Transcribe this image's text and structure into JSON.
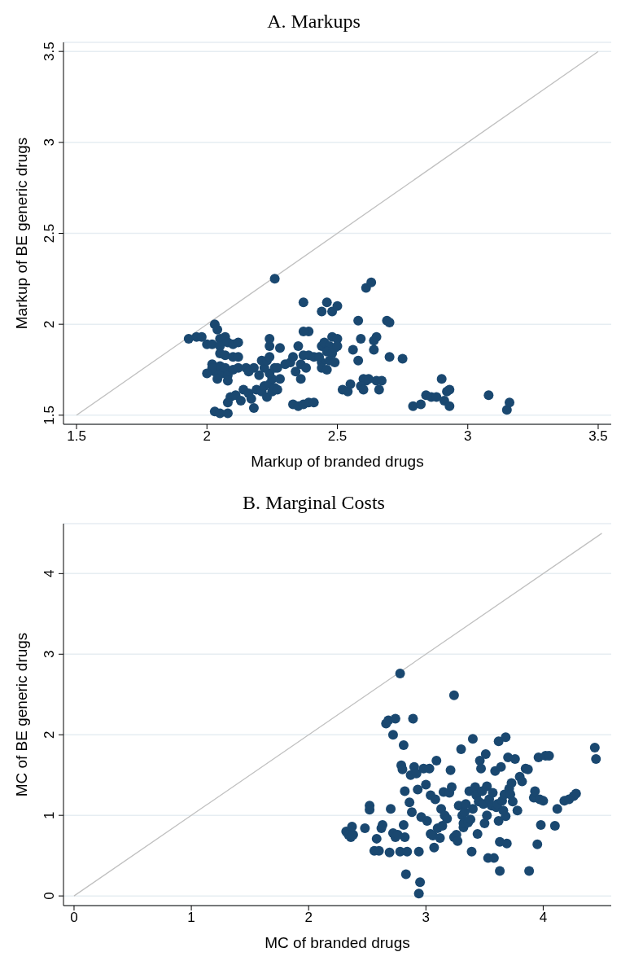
{
  "chart_data": [
    {
      "type": "scatter",
      "title": "A. Markups",
      "xlabel": "Markup of branded drugs",
      "ylabel": "Markup of BE generic drugs",
      "xlim": [
        1.45,
        3.55
      ],
      "ylim": [
        1.45,
        3.55
      ],
      "xticks": [
        1.5,
        2,
        2.5,
        3,
        3.5
      ],
      "yticks": [
        1.5,
        2,
        2.5,
        3,
        3.5
      ],
      "grid": "y",
      "series": [
        {
          "marker": "circle",
          "color": "#1a4870",
          "x": [
            1.93,
            1.96,
            1.98,
            2.0,
            2.02,
            2.03,
            2.04,
            2.05,
            2.05,
            2.07,
            2.08,
            2.1,
            2.12,
            2.05,
            2.07,
            2.1,
            2.12,
            2.02,
            2.03,
            2.05,
            2.06,
            2.07,
            2.08,
            2.1,
            2.12,
            2.15,
            2.16,
            2.04,
            2.08,
            2.02,
            2.0,
            2.18,
            2.03,
            2.05,
            2.08,
            2.08,
            2.09,
            2.11,
            2.13,
            2.14,
            2.16,
            2.17,
            2.18,
            2.19,
            2.21,
            2.22,
            2.23,
            2.24,
            2.25,
            2.26,
            2.27,
            2.25,
            2.24,
            2.26,
            2.28,
            2.2,
            2.22,
            2.21,
            2.23,
            2.24,
            2.24,
            2.24,
            2.28,
            2.27,
            2.3,
            2.32,
            2.33,
            2.35,
            2.37,
            2.39,
            2.41,
            2.26,
            2.37,
            2.39,
            2.37,
            2.35,
            2.37,
            2.39,
            2.41,
            2.36,
            2.38,
            2.33,
            2.34,
            2.36,
            2.44,
            2.44,
            2.46,
            2.43,
            2.44,
            2.45,
            2.47,
            2.46,
            2.48,
            2.49,
            2.48,
            2.47,
            2.49,
            2.44,
            2.46,
            2.48,
            2.5,
            2.5,
            2.5,
            2.52,
            2.54,
            2.55,
            2.56,
            2.58,
            2.59,
            2.58,
            2.6,
            2.61,
            2.59,
            2.6,
            2.62,
            2.61,
            2.63,
            2.64,
            2.65,
            2.64,
            2.65,
            2.67,
            2.66,
            2.69,
            2.7,
            2.7,
            2.75,
            2.79,
            2.82,
            2.84,
            2.86,
            2.88,
            2.9,
            2.91,
            2.92,
            2.93,
            2.93,
            3.08,
            3.15,
            3.16
          ],
          "values": [
            1.92,
            1.93,
            1.93,
            1.89,
            1.89,
            2.0,
            1.97,
            1.92,
            1.88,
            1.93,
            1.9,
            1.89,
            1.9,
            1.84,
            1.83,
            1.82,
            1.82,
            1.78,
            1.74,
            1.77,
            1.73,
            1.76,
            1.72,
            1.75,
            1.76,
            1.76,
            1.74,
            1.7,
            1.69,
            1.76,
            1.73,
            1.76,
            1.52,
            1.51,
            1.51,
            1.57,
            1.6,
            1.61,
            1.58,
            1.64,
            1.62,
            1.59,
            1.54,
            1.64,
            1.63,
            1.66,
            1.6,
            1.67,
            1.63,
            1.65,
            1.64,
            1.7,
            1.73,
            1.76,
            1.7,
            1.72,
            1.76,
            1.8,
            1.8,
            1.82,
            1.88,
            1.92,
            1.87,
            1.76,
            1.78,
            1.79,
            1.56,
            1.55,
            1.56,
            1.57,
            1.57,
            2.25,
            2.12,
            1.96,
            1.96,
            1.88,
            1.83,
            1.83,
            1.82,
            1.78,
            1.76,
            1.82,
            1.74,
            1.7,
            1.79,
            1.76,
            1.75,
            1.82,
            1.88,
            1.9,
            1.88,
            1.85,
            1.84,
            1.87,
            1.93,
            1.8,
            1.79,
            2.07,
            2.12,
            2.07,
            2.1,
            1.92,
            1.88,
            1.64,
            1.63,
            1.67,
            1.86,
            1.8,
            1.92,
            2.02,
            1.7,
            1.69,
            1.66,
            1.64,
            1.7,
            2.2,
            2.23,
            1.91,
            1.93,
            1.86,
            1.69,
            1.69,
            1.64,
            2.02,
            2.01,
            1.82,
            1.81,
            1.55,
            1.56,
            1.61,
            1.6,
            1.6,
            1.7,
            1.58,
            1.63,
            1.64,
            1.55,
            1.61,
            1.53,
            1.57
          ]
        },
        {
          "type": "line",
          "color": "#c0c0c0",
          "x": [
            1.5,
            3.5
          ],
          "values": [
            1.5,
            3.5
          ]
        }
      ]
    },
    {
      "type": "scatter",
      "title": "B. Marginal Costs",
      "xlabel": "MC of branded drugs",
      "ylabel": "MC of BE generic drugs",
      "xlim": [
        -0.09,
        4.58
      ],
      "ylim": [
        -0.12,
        4.62
      ],
      "xticks": [
        0,
        1,
        2,
        3,
        4
      ],
      "yticks": [
        0,
        1,
        2,
        3,
        4
      ],
      "grid": "y",
      "series": [
        {
          "marker": "circle",
          "color": "#1a4870",
          "x": [
            2.32,
            2.34,
            2.36,
            2.38,
            2.37,
            2.48,
            2.52,
            2.52,
            2.56,
            2.58,
            2.6,
            2.62,
            2.63,
            2.66,
            2.68,
            2.7,
            2.69,
            2.72,
            2.72,
            2.74,
            2.74,
            2.76,
            2.78,
            2.78,
            2.79,
            2.8,
            2.81,
            2.81,
            2.82,
            2.82,
            2.83,
            2.84,
            2.86,
            2.87,
            2.88,
            2.89,
            2.9,
            2.92,
            2.93,
            2.94,
            2.95,
            2.94,
            2.96,
            2.98,
            3.0,
            3.01,
            3.03,
            3.04,
            3.04,
            3.06,
            3.07,
            3.08,
            3.09,
            3.1,
            3.12,
            3.13,
            3.14,
            3.15,
            3.16,
            3.18,
            3.2,
            3.21,
            3.22,
            3.24,
            3.24,
            3.26,
            3.27,
            3.28,
            3.3,
            3.31,
            3.32,
            3.32,
            3.33,
            3.34,
            3.36,
            3.37,
            3.38,
            3.39,
            3.4,
            3.4,
            3.42,
            3.43,
            3.44,
            3.45,
            3.46,
            3.47,
            3.48,
            3.49,
            3.5,
            3.51,
            3.52,
            3.52,
            3.53,
            3.54,
            3.56,
            3.57,
            3.58,
            3.59,
            3.6,
            3.61,
            3.62,
            3.62,
            3.63,
            3.63,
            3.64,
            3.65,
            3.66,
            3.67,
            3.68,
            3.68,
            3.69,
            3.7,
            3.71,
            3.72,
            3.73,
            3.74,
            3.76,
            3.78,
            3.8,
            3.82,
            3.85,
            3.87,
            3.88,
            3.92,
            3.93,
            3.95,
            3.96,
            3.97,
            3.98,
            4.0,
            4.02,
            4.05,
            4.1,
            4.12,
            4.18,
            4.22,
            4.26,
            4.28,
            4.44,
            4.45
          ],
          "values": [
            0.8,
            0.76,
            0.73,
            0.76,
            0.86,
            0.84,
            1.12,
            1.07,
            0.56,
            0.71,
            0.56,
            0.84,
            0.88,
            2.14,
            2.18,
            1.08,
            0.54,
            0.78,
            2.0,
            2.2,
            0.73,
            0.76,
            2.76,
            0.55,
            1.62,
            1.57,
            1.87,
            0.88,
            1.3,
            0.73,
            0.27,
            0.55,
            1.16,
            1.5,
            1.04,
            2.2,
            1.6,
            1.52,
            1.32,
            0.55,
            0.17,
            0.03,
            0.98,
            1.58,
            1.38,
            0.93,
            1.58,
            1.25,
            0.77,
            0.75,
            0.6,
            1.2,
            1.68,
            0.84,
            0.72,
            1.08,
            0.87,
            1.29,
            1.0,
            0.96,
            1.28,
            1.56,
            1.35,
            2.49,
            0.73,
            0.76,
            0.68,
            1.12,
            1.82,
            1.0,
            0.85,
            0.9,
            1.04,
            1.14,
            0.91,
            1.3,
            0.95,
            0.55,
            1.95,
            1.08,
            1.35,
            1.25,
            0.77,
            1.17,
            1.68,
            1.58,
            1.3,
            1.14,
            0.9,
            1.76,
            1.36,
            1.0,
            0.47,
            1.2,
            1.12,
            1.28,
            0.47,
            1.55,
            1.1,
            1.14,
            0.93,
            1.92,
            0.67,
            0.31,
            1.6,
            1.18,
            1.06,
            1.26,
            0.99,
            1.97,
            0.65,
            1.72,
            1.33,
            1.26,
            1.4,
            1.17,
            1.7,
            1.06,
            1.48,
            1.42,
            1.58,
            1.57,
            0.31,
            1.22,
            1.3,
            0.64,
            1.72,
            1.2,
            0.88,
            1.18,
            1.74,
            1.74,
            0.87,
            1.08,
            1.18,
            1.2,
            1.24,
            1.27,
            1.84,
            1.7
          ]
        },
        {
          "type": "line",
          "color": "#c0c0c0",
          "x": [
            0,
            4.5
          ],
          "values": [
            0,
            4.5
          ]
        }
      ]
    }
  ]
}
